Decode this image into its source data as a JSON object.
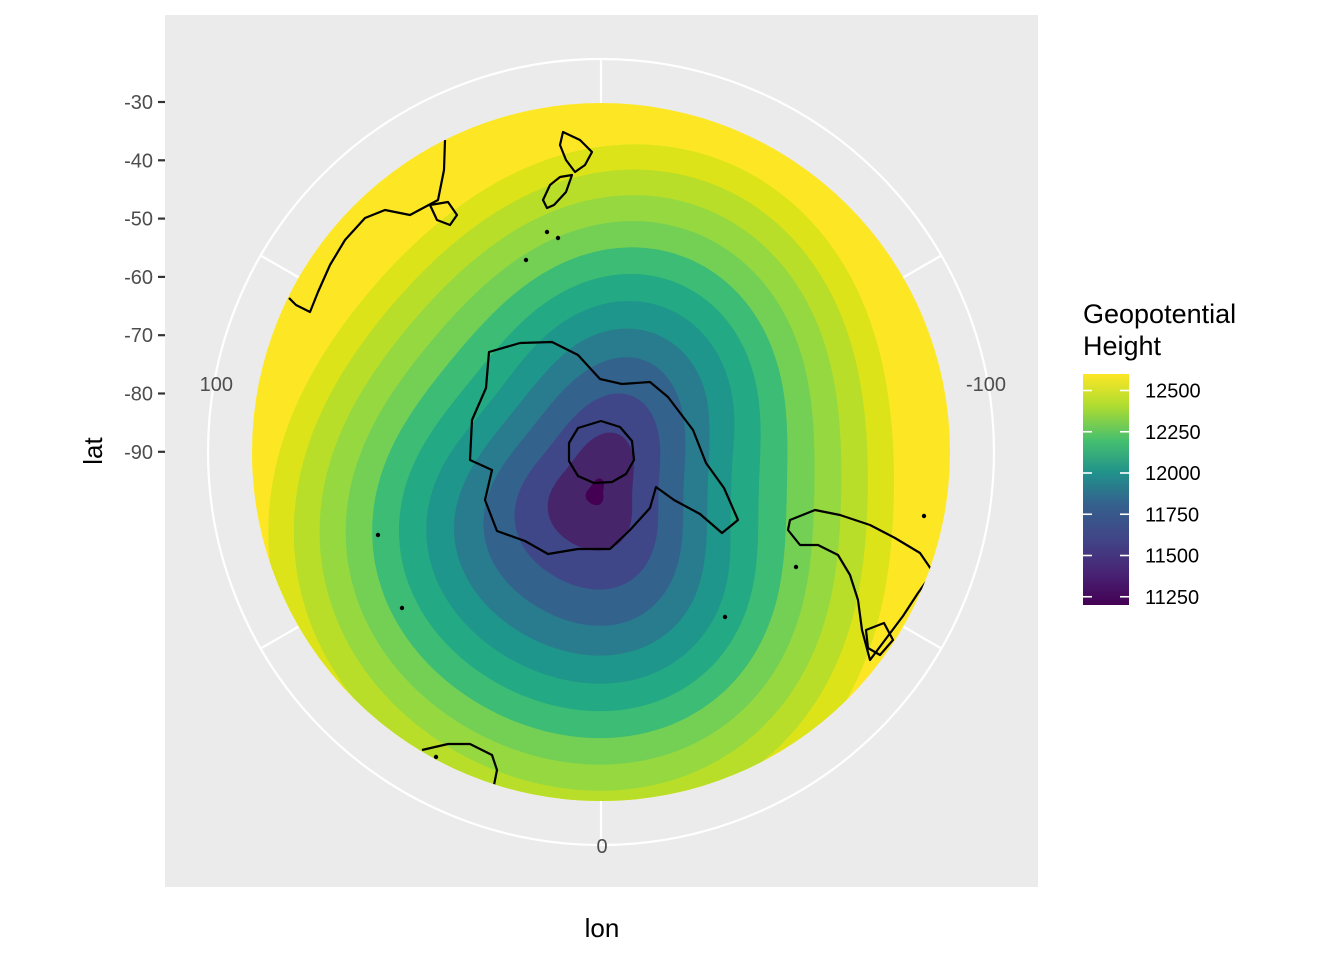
{
  "chart_data": {
    "type": "heatmap",
    "projection": "polar-stereographic (south pole)",
    "xlabel": "lon",
    "ylabel": "lat",
    "lat_ticks": [
      "-30",
      "-40",
      "-50",
      "-60",
      "-70",
      "-80",
      "-90"
    ],
    "lon_ticks": [
      {
        "label": "100",
        "lon": 100
      },
      {
        "label": "-100",
        "lon": -100
      },
      {
        "label": "0",
        "lon": 0
      }
    ],
    "lat_range": [
      -90,
      -30
    ],
    "grid": true,
    "legend": {
      "title_lines": [
        "Geopotential",
        "Height"
      ],
      "position": "right",
      "breaks": [
        12500,
        12250,
        12000,
        11750,
        11500,
        11250
      ],
      "range": [
        11200,
        12600
      ],
      "colormap": "viridis"
    },
    "contour_levels": [
      11250,
      11350,
      11450,
      11550,
      11650,
      11750,
      11850,
      11950,
      12050,
      12150,
      12250,
      12350,
      12450
    ],
    "colors": {
      "panel": "#ebebeb",
      "grid": "#ffffff",
      "coast": "#000000",
      "level_fills": [
        "#440154",
        "#46256b",
        "#3f4788",
        "#33638d",
        "#297b8e",
        "#1f968b",
        "#23a983",
        "#3cbc74",
        "#73d055",
        "#95d840",
        "#b8de29",
        "#dce319",
        "#fde725"
      ]
    }
  }
}
